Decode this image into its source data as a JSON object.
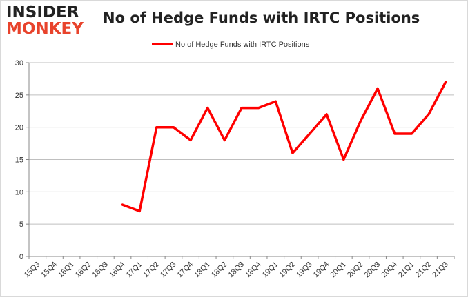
{
  "logo": {
    "line1": "INSIDER",
    "line2": "MONKEY"
  },
  "colors": {
    "series": "#ff0000",
    "grid": "#bfbfbf",
    "logo_accent": "#e8432c"
  },
  "chart_data": {
    "type": "line",
    "title": "No of Hedge Funds with IRTC Positions",
    "xlabel": "",
    "ylabel": "",
    "ylim": [
      0,
      30
    ],
    "yticks": [
      0,
      5,
      10,
      15,
      20,
      25,
      30
    ],
    "grid": true,
    "legend": "top-center",
    "categories": [
      "15Q3",
      "15Q4",
      "16Q1",
      "16Q2",
      "16Q3",
      "16Q4",
      "17Q1",
      "17Q2",
      "17Q3",
      "17Q4",
      "18Q1",
      "18Q2",
      "18Q3",
      "18Q4",
      "19Q1",
      "19Q2",
      "19Q3",
      "19Q4",
      "20Q1",
      "20Q2",
      "20Q3",
      "20Q4",
      "21Q1",
      "21Q2",
      "21Q3"
    ],
    "series": [
      {
        "name": "No of Hedge Funds with IRTC Positions",
        "values": [
          null,
          null,
          null,
          null,
          null,
          8,
          7,
          20,
          20,
          18,
          23,
          18,
          23,
          23,
          24,
          16,
          19,
          22,
          15,
          21,
          26,
          19,
          19,
          22,
          27
        ]
      }
    ]
  }
}
